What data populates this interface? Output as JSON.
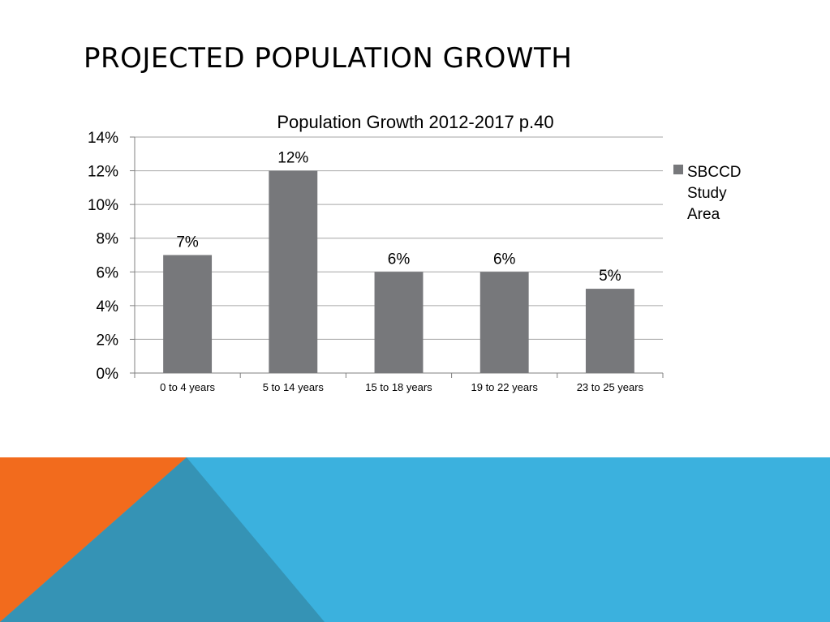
{
  "slide": {
    "title": "PROJECTED POPULATION GROWTH"
  },
  "colors": {
    "bar": "#77787b",
    "accent_orange": "#f26b1d",
    "accent_blue": "#3bb1de",
    "accent_dark_blue": "#3593b5",
    "gridline": "#a6a6a6"
  },
  "chart_data": {
    "type": "bar",
    "title": "Population Growth 2012-2017  p.40",
    "categories": [
      "0 to 4 years",
      "5 to 14 years",
      "15 to 18 years",
      "19 to 22 years",
      "23 to 25 years"
    ],
    "series": [
      {
        "name": "SBCCD Study Area",
        "values": [
          7,
          12,
          6,
          6,
          5
        ],
        "data_labels": [
          "7%",
          "12%",
          "6%",
          "6%",
          "5%"
        ]
      }
    ],
    "y_ticks": [
      "0%",
      "2%",
      "4%",
      "6%",
      "8%",
      "10%",
      "12%",
      "14%"
    ],
    "ylim": [
      0,
      14
    ],
    "y_unit": "%",
    "grid": true,
    "legend_position": "right",
    "legend_lines": [
      "SBCCD",
      "Study",
      "Area"
    ]
  }
}
